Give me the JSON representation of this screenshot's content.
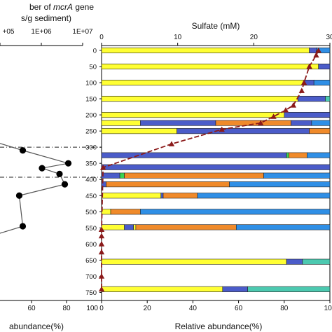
{
  "chart_data": [
    {
      "type": "line",
      "top_axis_label_pre": "ber of ",
      "top_axis_label_italic": "mcrA",
      "top_axis_label_post": " gene",
      "top_axis_label_line2": "s/g sediment)",
      "top_ticks": [
        "+05",
        "1E+06",
        "1E+07"
      ],
      "bottom_label": "abundance(%)",
      "bottom_ticks": [
        "60",
        "80",
        "100"
      ],
      "x_range_bottom": [
        42,
        100
      ],
      "series": [
        {
          "x": [
            55,
            81,
            66,
            76,
            79,
            53,
            55
          ],
          "y": [
            310,
            350,
            365,
            383,
            415,
            450,
            545
          ]
        }
      ],
      "depth_dividers": [
        300,
        393
      ]
    },
    {
      "type": "bar",
      "title": "Sulfate (mM)",
      "top_ticks": [
        "0",
        "10",
        "20",
        "30"
      ],
      "sulfate_range": [
        0,
        30
      ],
      "xlabel": "Relative abundance(%)",
      "bottom_ticks": [
        "0",
        "20",
        "40",
        "60",
        "80",
        "100"
      ],
      "ylim": [
        -15,
        775
      ],
      "y_ticks": [
        "0",
        "50",
        "100",
        "150",
        "200",
        "250",
        "300",
        "350",
        "400",
        "450",
        "500",
        "550",
        "600",
        "650",
        "700",
        "750"
      ],
      "colors": {
        "yellow": "#ffff33",
        "indigo": "#4b5cc9",
        "blue": "#2f8fe6",
        "orange": "#f08a2a",
        "teal": "#4cc9b0",
        "green": "#39d353",
        "sulfate": "#8b1a1a"
      },
      "rows": [
        {
          "depth": 0,
          "segments": [
            [
              "yellow",
              91
            ],
            [
              "indigo",
              3
            ],
            [
              "blue",
              6
            ]
          ]
        },
        {
          "depth": 50,
          "segments": [
            [
              "yellow",
              95
            ],
            [
              "indigo",
              5
            ]
          ]
        },
        {
          "depth": 100,
          "segments": [
            [
              "yellow",
              89
            ],
            [
              "indigo",
              4
            ],
            [
              "blue",
              7
            ]
          ]
        },
        {
          "depth": 150,
          "segments": [
            [
              "yellow",
              86
            ],
            [
              "indigo",
              12
            ],
            [
              "teal",
              2
            ]
          ]
        },
        {
          "depth": 200,
          "segments": [
            [
              "yellow",
              80
            ],
            [
              "indigo",
              20
            ]
          ]
        },
        {
          "depth": 225,
          "segments": [
            [
              "yellow",
              17
            ],
            [
              "indigo",
              33
            ],
            [
              "orange",
              33
            ],
            [
              "indigo",
              9
            ],
            [
              "blue",
              8
            ]
          ]
        },
        {
          "depth": 250,
          "segments": [
            [
              "yellow",
              33
            ],
            [
              "indigo",
              58
            ],
            [
              "orange",
              9
            ]
          ]
        },
        {
          "depth": 325,
          "segments": [
            [
              "indigo",
              81
            ],
            [
              "green",
              1
            ],
            [
              "orange",
              8
            ],
            [
              "blue",
              10
            ]
          ]
        },
        {
          "depth": 362,
          "segments": [
            [
              "indigo",
              100
            ]
          ]
        },
        {
          "depth": 388,
          "segments": [
            [
              "indigo",
              8
            ],
            [
              "green",
              2
            ],
            [
              "orange",
              61
            ],
            [
              "blue",
              29
            ]
          ]
        },
        {
          "depth": 415,
          "segments": [
            [
              "indigo",
              2
            ],
            [
              "orange",
              54
            ],
            [
              "blue",
              44
            ]
          ]
        },
        {
          "depth": 450,
          "segments": [
            [
              "yellow",
              26
            ],
            [
              "indigo",
              1
            ],
            [
              "orange",
              15
            ],
            [
              "blue",
              58
            ]
          ]
        },
        {
          "depth": 500,
          "segments": [
            [
              "yellow",
              4
            ],
            [
              "orange",
              13
            ],
            [
              "blue",
              83
            ]
          ]
        },
        {
          "depth": 548,
          "segments": [
            [
              "yellow",
              10
            ],
            [
              "indigo",
              4
            ],
            [
              "yellow",
              1
            ],
            [
              "orange",
              44
            ],
            [
              "blue",
              41
            ]
          ]
        },
        {
          "depth": 655,
          "segments": [
            [
              "yellow",
              81
            ],
            [
              "indigo",
              7
            ],
            [
              "teal",
              12
            ]
          ]
        },
        {
          "depth": 740,
          "segments": [
            [
              "yellow",
              53
            ],
            [
              "indigo",
              11
            ],
            [
              "teal",
              36
            ]
          ]
        }
      ],
      "sulfate_profile": [
        {
          "depth": 0,
          "value": 28.5
        },
        {
          "depth": 15,
          "value": 28.2
        },
        {
          "depth": 50,
          "value": 27.3
        },
        {
          "depth": 100,
          "value": 26.6
        },
        {
          "depth": 125,
          "value": 26.3
        },
        {
          "depth": 170,
          "value": 25.2
        },
        {
          "depth": 185,
          "value": 24.2
        },
        {
          "depth": 205,
          "value": 22.6
        },
        {
          "depth": 225,
          "value": 20.9
        },
        {
          "depth": 245,
          "value": 15.8
        },
        {
          "depth": 290,
          "value": 9.2
        },
        {
          "depth": 363,
          "value": 0.2
        },
        {
          "depth": 555,
          "value": 0
        },
        {
          "depth": 575,
          "value": 0
        },
        {
          "depth": 600,
          "value": 0
        },
        {
          "depth": 625,
          "value": 0
        },
        {
          "depth": 700,
          "value": 0
        },
        {
          "depth": 740,
          "value": 0
        }
      ]
    }
  ]
}
